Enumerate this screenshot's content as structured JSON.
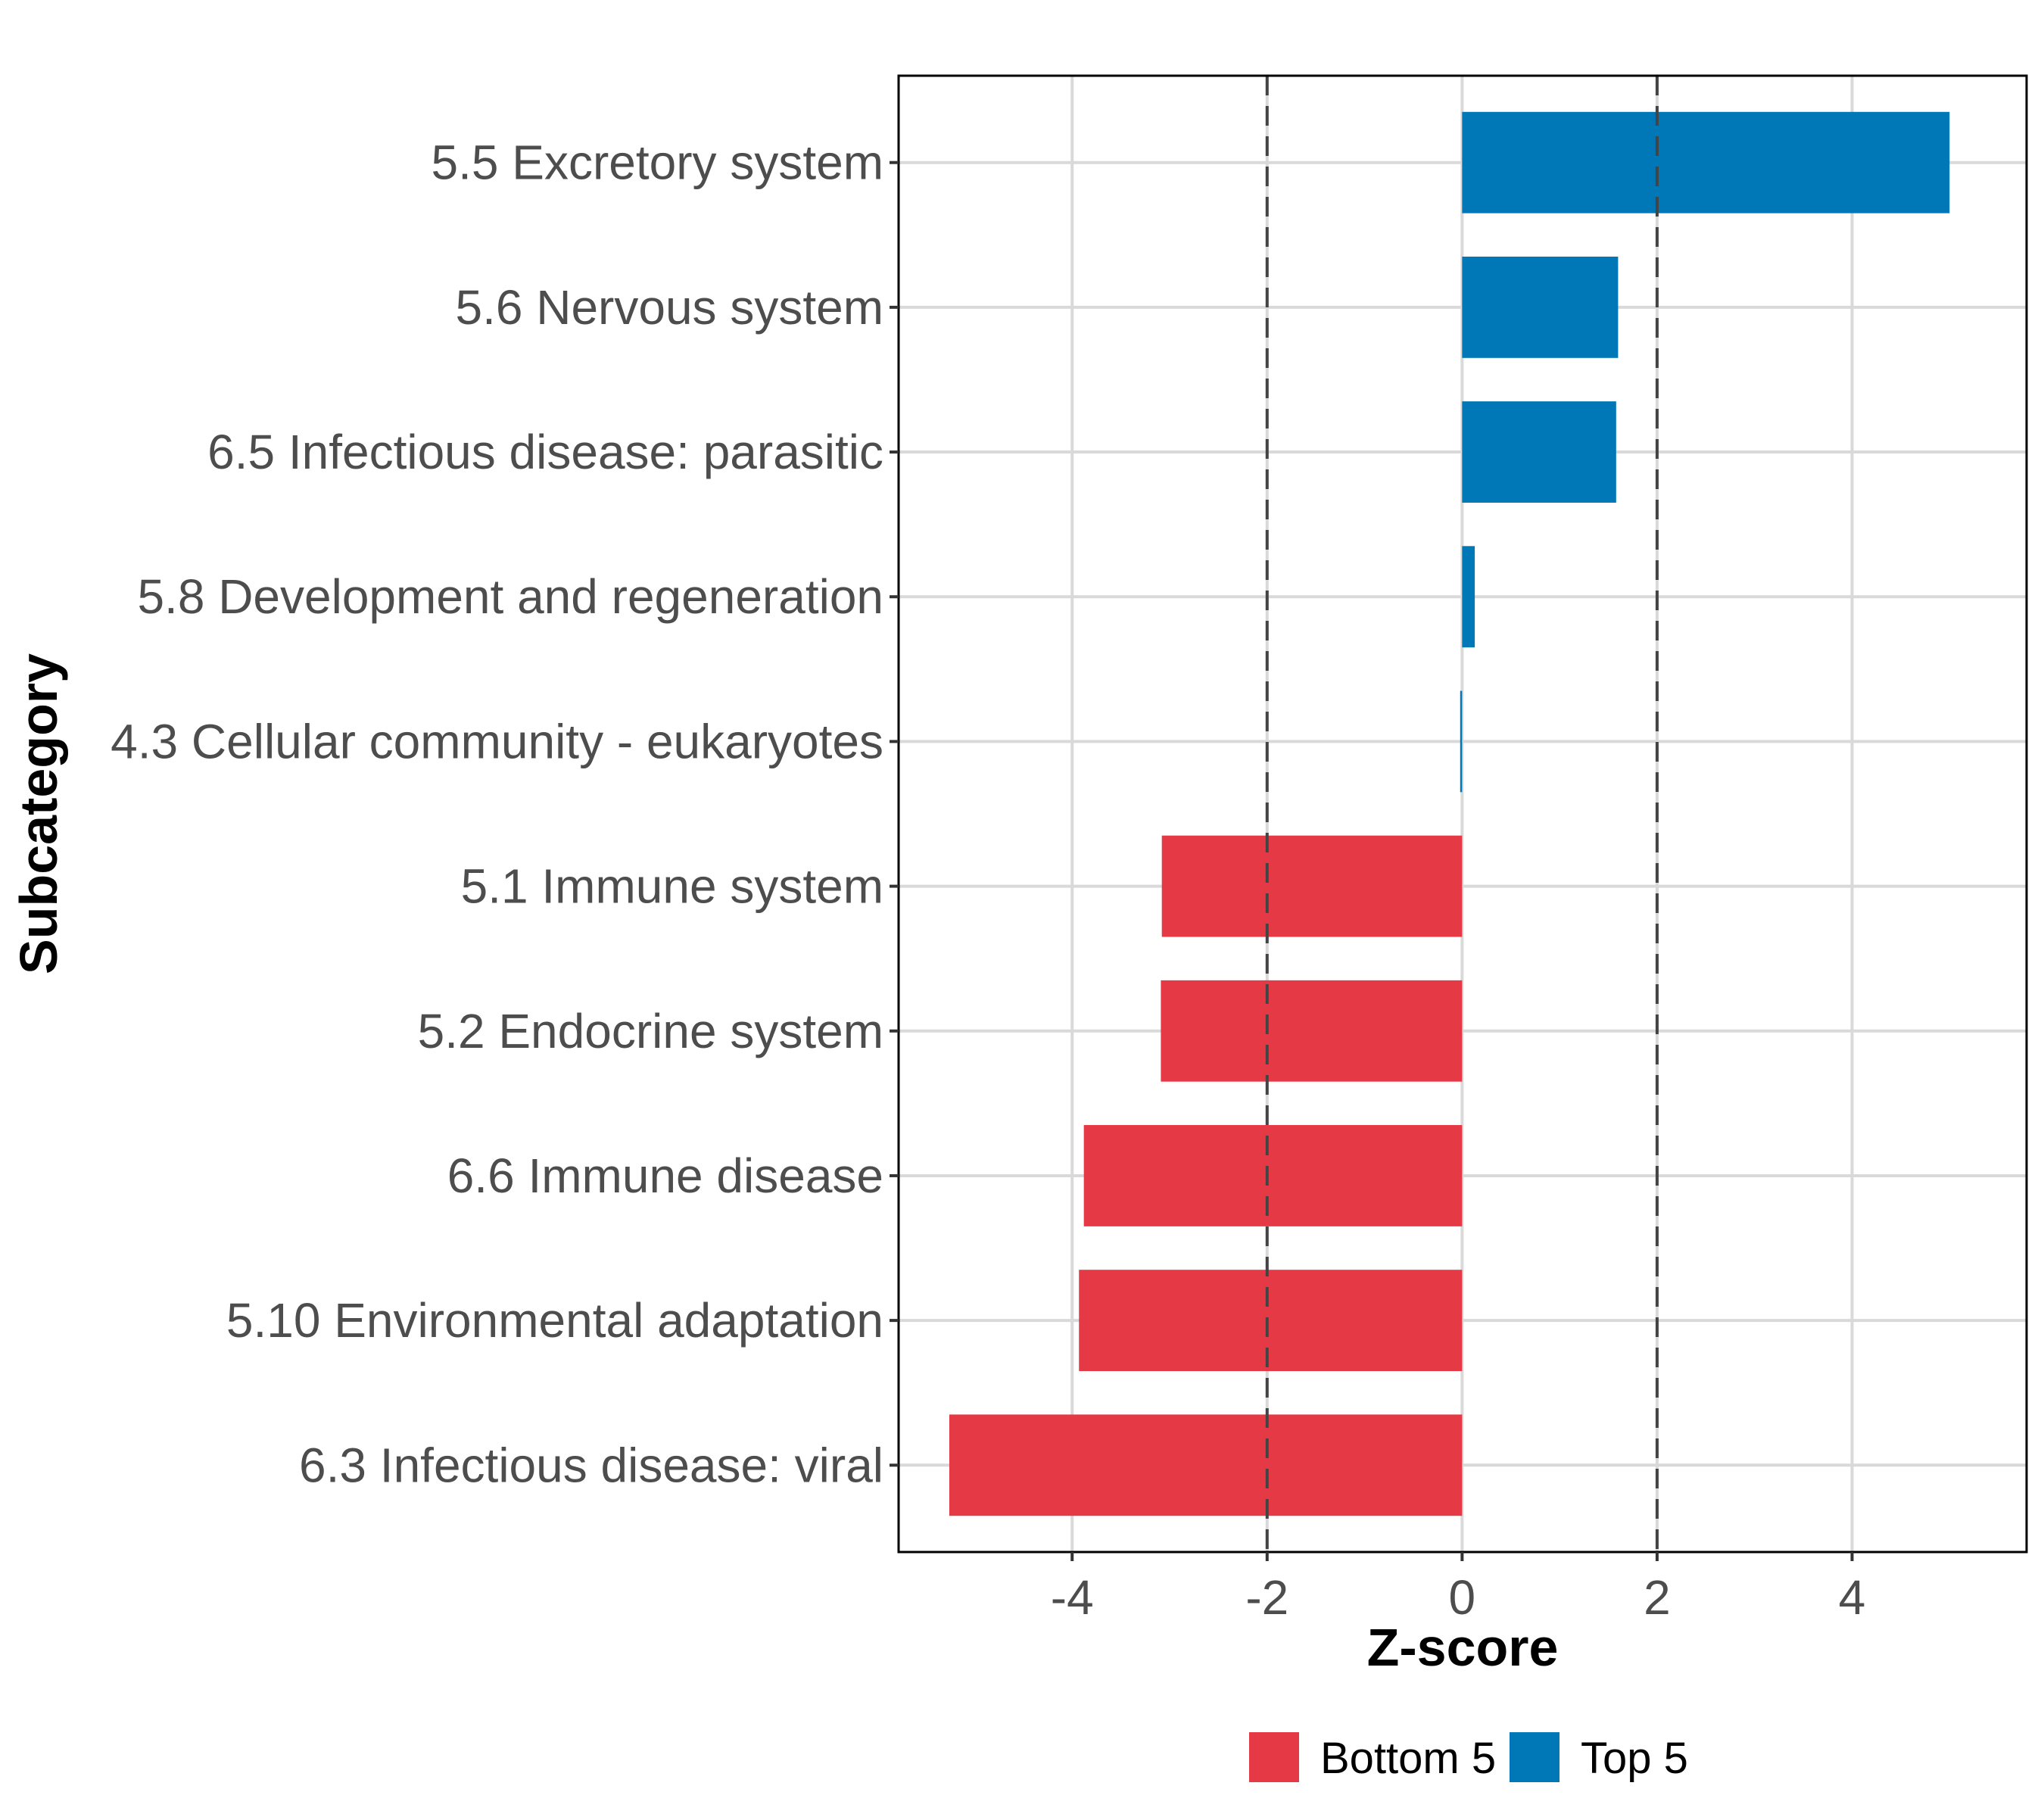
{
  "chart_data": {
    "type": "bar",
    "orientation": "horizontal",
    "title": "",
    "xlabel": "Z-score",
    "ylabel": "Subcategory",
    "xlim": [
      -5.78,
      5.79
    ],
    "xticks": [
      -4,
      -2,
      0,
      2,
      4
    ],
    "xtick_labels": [
      "-4",
      "-2",
      "0",
      "2",
      "4"
    ],
    "reference_lines": [
      -2,
      2
    ],
    "grid": true,
    "legend_position": "bottom",
    "categories": [
      "5.5 Excretory system",
      "5.6 Nervous system",
      "6.5 Infectious disease: parasitic",
      "5.8 Development and regeneration",
      "4.3 Cellular community - eukaryotes",
      "5.1 Immune system",
      "5.2 Endocrine system",
      "6.6 Immune disease",
      "5.10 Environmental adaptation",
      "6.3 Infectious disease: viral"
    ],
    "values": [
      5.0,
      1.6,
      1.58,
      0.13,
      -0.02,
      -3.08,
      -3.09,
      -3.88,
      -3.93,
      -5.26
    ],
    "groups": [
      "Top 5",
      "Top 5",
      "Top 5",
      "Top 5",
      "Top 5",
      "Bottom 5",
      "Bottom 5",
      "Bottom 5",
      "Bottom 5",
      "Bottom 5"
    ],
    "legend": [
      {
        "name": "Bottom 5",
        "color": "#E63946"
      },
      {
        "name": "Top 5",
        "color": "#0077B6"
      }
    ]
  }
}
